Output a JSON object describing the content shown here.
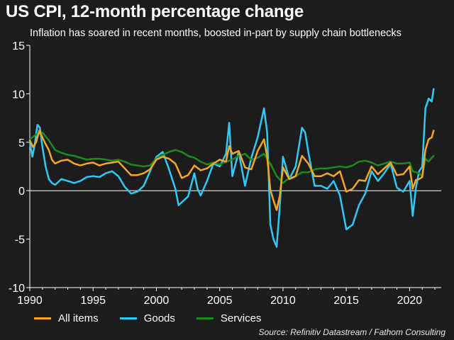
{
  "title": "US CPI, 12-month percentage change",
  "subtitle": "Inflation has soared in recent months, boosted in-part by supply chain bottlenecks",
  "source": "Source: Refinitiv Datastream / Fathom Consulting",
  "legend": [
    {
      "label": "All items",
      "color": "#f5a623"
    },
    {
      "label": "Goods",
      "color": "#2ec9f5"
    },
    {
      "label": "Services",
      "color": "#1e8a1e"
    }
  ],
  "chart_data": {
    "type": "line",
    "xlim": [
      1990,
      2022.5
    ],
    "ylim": [
      -10,
      15
    ],
    "x_ticks": [
      1990,
      1995,
      2000,
      2005,
      2010,
      2015,
      2020
    ],
    "y_ticks": [
      -10,
      -5,
      0,
      5,
      10,
      15
    ],
    "x_tick_labels": [
      "1990",
      "1995",
      "2000",
      "2005",
      "2010",
      "2015",
      "2020"
    ],
    "y_tick_labels": [
      "-10",
      "-5",
      "0",
      "5",
      "10",
      "15"
    ],
    "zero_line": true,
    "series": [
      {
        "name": "All items",
        "color": "#f5a623",
        "x": [
          1990,
          1990.25,
          1990.5,
          1990.75,
          1991,
          1991.25,
          1991.5,
          1991.75,
          1992,
          1992.5,
          1993,
          1993.5,
          1994,
          1994.5,
          1995,
          1995.5,
          1996,
          1996.5,
          1997,
          1997.5,
          1998,
          1998.5,
          1999,
          1999.5,
          2000,
          2000.5,
          2001,
          2001.5,
          2002,
          2002.5,
          2003,
          2003.5,
          2004,
          2004.5,
          2005,
          2005.5,
          2005.75,
          2006,
          2006.5,
          2007,
          2007.5,
          2008,
          2008.5,
          2008.75,
          2009,
          2009.25,
          2009.5,
          2009.75,
          2010,
          2010.5,
          2011,
          2011.5,
          2012,
          2012.5,
          2013,
          2013.5,
          2014,
          2014.5,
          2015,
          2015.5,
          2016,
          2016.5,
          2017,
          2017.5,
          2018,
          2018.5,
          2019,
          2019.5,
          2020,
          2020.25,
          2020.5,
          2020.75,
          2021,
          2021.25,
          2021.5,
          2021.75,
          2021.9
        ],
        "y": [
          5.2,
          4.5,
          5.0,
          6.2,
          5.5,
          4.8,
          4.2,
          3.2,
          2.8,
          3.1,
          3.2,
          2.8,
          2.6,
          2.8,
          2.9,
          2.6,
          2.8,
          2.9,
          3.0,
          2.3,
          1.6,
          1.6,
          1.8,
          2.2,
          3.2,
          3.5,
          3.3,
          2.8,
          1.3,
          1.6,
          2.6,
          2.1,
          2.3,
          2.8,
          3.2,
          3.0,
          4.6,
          3.8,
          4.1,
          2.4,
          2.2,
          4.1,
          5.3,
          3.5,
          0.1,
          -1.0,
          -2.0,
          -0.5,
          2.4,
          1.2,
          1.5,
          3.6,
          2.8,
          1.5,
          1.5,
          1.8,
          1.5,
          2.0,
          -0.1,
          0.2,
          1.1,
          1.0,
          2.5,
          1.7,
          2.3,
          2.9,
          1.6,
          1.7,
          2.5,
          0.2,
          1.1,
          1.2,
          1.4,
          4.2,
          5.3,
          5.5,
          6.2
        ]
      },
      {
        "name": "Goods",
        "color": "#2ec9f5",
        "x": [
          1990,
          1990.2,
          1990.4,
          1990.6,
          1990.8,
          1991,
          1991.25,
          1991.5,
          1991.75,
          1992,
          1992.5,
          1993,
          1993.5,
          1994,
          1994.5,
          1995,
          1995.5,
          1996,
          1996.5,
          1997,
          1997.5,
          1998,
          1998.5,
          1999,
          1999.5,
          2000,
          2000.5,
          2001,
          2001.5,
          2001.75,
          2002,
          2002.5,
          2003,
          2003.25,
          2003.5,
          2004,
          2004.5,
          2005,
          2005.5,
          2005.75,
          2006,
          2006.5,
          2007,
          2007.5,
          2008,
          2008.5,
          2008.75,
          2009,
          2009.25,
          2009.5,
          2009.75,
          2010,
          2010.5,
          2011,
          2011.5,
          2011.75,
          2012,
          2012.5,
          2013,
          2013.5,
          2014,
          2014.5,
          2015,
          2015.5,
          2016,
          2016.5,
          2017,
          2017.5,
          2018,
          2018.5,
          2019,
          2019.5,
          2020,
          2020.25,
          2020.5,
          2020.75,
          2021,
          2021.25,
          2021.5,
          2021.75,
          2021.9
        ],
        "y": [
          5.0,
          3.5,
          4.8,
          6.8,
          6.5,
          4.5,
          2.5,
          1.2,
          0.8,
          0.6,
          1.2,
          1.0,
          0.8,
          1.0,
          1.4,
          1.5,
          1.4,
          1.8,
          2.0,
          1.5,
          0.4,
          -0.3,
          -0.1,
          0.5,
          2.0,
          3.5,
          4.0,
          2.2,
          0.2,
          -1.5,
          -1.2,
          -0.6,
          1.8,
          0.2,
          -0.5,
          1.0,
          2.8,
          2.5,
          3.8,
          7.0,
          1.5,
          4.0,
          0.5,
          3.4,
          5.5,
          8.5,
          6.0,
          -3.5,
          -5.0,
          -5.8,
          -1.5,
          3.5,
          1.2,
          2.5,
          6.5,
          6.0,
          4.0,
          0.5,
          0.5,
          0.2,
          1.0,
          -0.5,
          -4.0,
          -3.5,
          -1.5,
          -0.3,
          2.0,
          1.0,
          1.8,
          2.8,
          0.3,
          -0.1,
          1.0,
          -2.6,
          0.3,
          2.0,
          2.5,
          8.5,
          9.5,
          9.2,
          10.5
        ]
      },
      {
        "name": "Services",
        "color": "#1e8a1e",
        "x": [
          1990,
          1990.5,
          1991,
          1991.5,
          1992,
          1992.5,
          1993,
          1993.5,
          1994,
          1994.5,
          1995,
          1995.5,
          1996,
          1996.5,
          1997,
          1997.5,
          1998,
          1998.5,
          1999,
          1999.5,
          2000,
          2000.5,
          2001,
          2001.5,
          2002,
          2002.5,
          2003,
          2003.5,
          2004,
          2004.5,
          2005,
          2005.5,
          2006,
          2006.5,
          2007,
          2007.5,
          2008,
          2008.5,
          2009,
          2009.5,
          2010,
          2010.5,
          2011,
          2011.5,
          2012,
          2012.5,
          2013,
          2013.5,
          2014,
          2014.5,
          2015,
          2015.5,
          2016,
          2016.5,
          2017,
          2017.5,
          2018,
          2018.5,
          2019,
          2019.5,
          2020,
          2020.25,
          2020.5,
          2020.75,
          2021,
          2021.25,
          2021.5,
          2021.75,
          2021.9
        ],
        "y": [
          5.3,
          5.8,
          6.0,
          5.2,
          4.2,
          3.9,
          3.7,
          3.6,
          3.4,
          3.2,
          3.3,
          3.3,
          3.2,
          3.1,
          3.2,
          3.0,
          2.7,
          2.6,
          2.5,
          2.6,
          3.3,
          3.7,
          4.0,
          4.2,
          4.0,
          3.6,
          3.4,
          3.0,
          2.7,
          2.9,
          2.7,
          3.0,
          3.2,
          3.6,
          3.8,
          3.2,
          3.4,
          3.8,
          2.8,
          1.5,
          0.8,
          1.3,
          1.5,
          1.9,
          1.9,
          2.2,
          2.3,
          2.3,
          2.4,
          2.5,
          2.4,
          2.6,
          3.0,
          3.1,
          2.9,
          2.6,
          2.8,
          3.0,
          2.8,
          2.8,
          2.9,
          2.0,
          1.9,
          1.8,
          1.5,
          3.3,
          3.0,
          3.4,
          3.6
        ]
      }
    ]
  }
}
